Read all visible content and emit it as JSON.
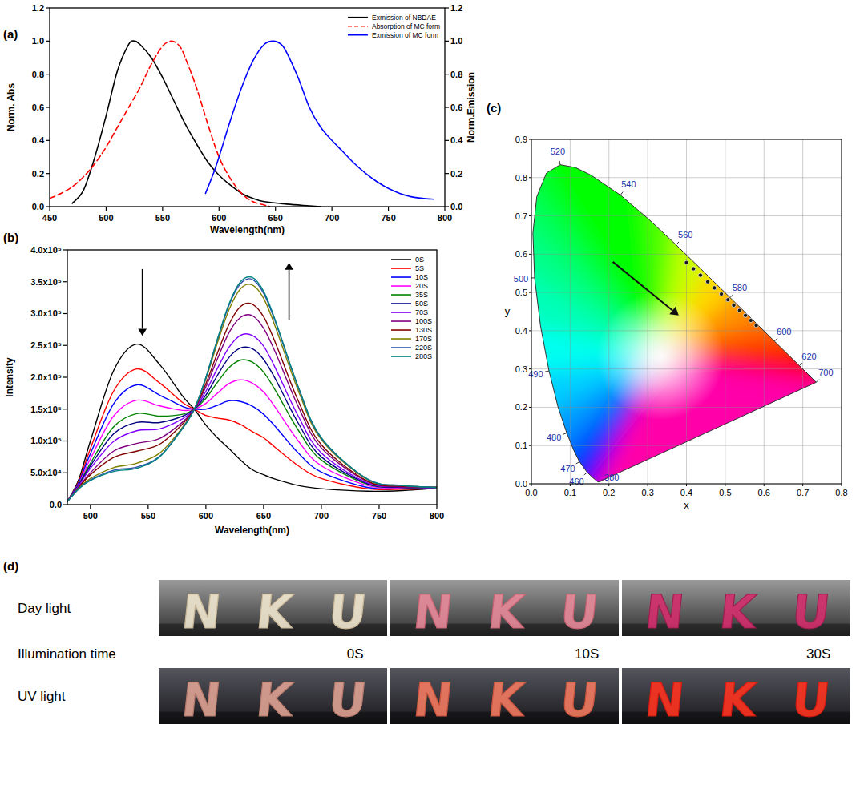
{
  "chart_data": [
    {
      "panel": "(a)",
      "type": "line",
      "x_label": "Wavelength(nm)",
      "y_label": "Norm. Abs",
      "y2_label": "Norm.Emission",
      "xlim": [
        450,
        800
      ],
      "xticks": [
        450,
        500,
        550,
        600,
        650,
        700,
        750,
        800
      ],
      "ylim": [
        0,
        1.2
      ],
      "yticks": [
        {
          "value": 0,
          "label": "0.0"
        },
        0.2,
        0.4,
        0.6,
        0.8,
        {
          "value": 1,
          "label": "1.0"
        },
        1.2
      ],
      "y2lim": [
        0,
        1.2
      ],
      "y2ticks": [
        {
          "value": 0,
          "label": "0.0"
        },
        0.2,
        0.4,
        0.6,
        0.8,
        {
          "value": 1,
          "label": "1.0"
        },
        1.2
      ],
      "grid": false,
      "legend": "upper right",
      "series": [
        {
          "name": "Exmission of NBDAE",
          "color": "#000000",
          "line_style": "solid",
          "axis": "y2",
          "x": [
            470,
            480,
            490,
            500,
            510,
            520,
            525,
            530,
            540,
            550,
            560,
            570,
            580,
            590,
            600,
            610,
            620,
            630,
            640,
            660,
            680,
            690
          ],
          "values": [
            0.02,
            0.1,
            0.3,
            0.55,
            0.82,
            0.98,
            1.0,
            0.98,
            0.9,
            0.78,
            0.64,
            0.5,
            0.38,
            0.27,
            0.19,
            0.13,
            0.08,
            0.05,
            0.03,
            0.015,
            0.005,
            0.0
          ]
        },
        {
          "name": "Absorption of MC form",
          "color": "#ff0000",
          "line_style": "dashed",
          "x": [
            450,
            460,
            470,
            480,
            490,
            500,
            510,
            520,
            530,
            540,
            550,
            558,
            565,
            570,
            580,
            590,
            600,
            610,
            620,
            630,
            640,
            645
          ],
          "values": [
            0.05,
            0.08,
            0.12,
            0.18,
            0.26,
            0.36,
            0.48,
            0.6,
            0.72,
            0.86,
            0.97,
            1.0,
            0.97,
            0.9,
            0.72,
            0.5,
            0.3,
            0.17,
            0.08,
            0.03,
            0.01,
            0.0
          ]
        },
        {
          "name": "Exmission of MC form",
          "color": "#0000ff",
          "line_style": "solid",
          "axis": "y2",
          "x": [
            588,
            595,
            600,
            610,
            620,
            630,
            640,
            648,
            655,
            660,
            670,
            680,
            690,
            700,
            710,
            720,
            730,
            740,
            750,
            760,
            770,
            780,
            790
          ],
          "values": [
            0.08,
            0.2,
            0.3,
            0.52,
            0.72,
            0.88,
            0.98,
            1.0,
            0.98,
            0.93,
            0.78,
            0.6,
            0.48,
            0.4,
            0.33,
            0.26,
            0.2,
            0.15,
            0.11,
            0.08,
            0.06,
            0.05,
            0.045
          ]
        }
      ]
    },
    {
      "panel": "(b)",
      "type": "line",
      "x_label": "Wavelength(nm)",
      "y_label": "Intensity",
      "xlim": [
        480,
        800
      ],
      "xticks": [
        500,
        550,
        600,
        650,
        700,
        750,
        800
      ],
      "ylim": [
        0,
        400000
      ],
      "yticks": [
        {
          "value": 0,
          "label": "0.0"
        },
        {
          "value": 50000,
          "label": "5.0x10⁴"
        },
        {
          "value": 100000,
          "label": "1.0x10⁵"
        },
        {
          "value": 150000,
          "label": "1.5x10⁵"
        },
        {
          "value": 200000,
          "label": "2.0x10⁵"
        },
        {
          "value": 250000,
          "label": "2.5x10⁵"
        },
        {
          "value": 300000,
          "label": "3.0x10⁵"
        },
        {
          "value": 350000,
          "label": "3.5x10⁵"
        },
        {
          "value": 400000,
          "label": "4.0x10⁵"
        }
      ],
      "grid": false,
      "legend": "upper right",
      "x": [
        480,
        490,
        500,
        520,
        540,
        560,
        580,
        590,
        600,
        610,
        620,
        630,
        640,
        650,
        660,
        680,
        700,
        740,
        770,
        800
      ],
      "series": [
        {
          "name": "0S",
          "color": "#000000",
          "values": [
            5000,
            40000,
            100000,
            210000,
            252000,
            220000,
            170000,
            150000,
            125000,
            105000,
            88000,
            70000,
            55000,
            47000,
            40000,
            30000,
            25000,
            21000,
            22000,
            26000
          ]
        },
        {
          "name": "5S",
          "color": "#ff0000",
          "values": [
            5000,
            37000,
            88000,
            178000,
            213000,
            191000,
            160000,
            150000,
            140000,
            136000,
            133000,
            126000,
            115000,
            105000,
            90000,
            61000,
            41000,
            25000,
            24000,
            26000
          ]
        },
        {
          "name": "10S",
          "color": "#0000ff",
          "values": [
            5000,
            35000,
            80000,
            158000,
            188000,
            172000,
            154000,
            150000,
            150000,
            156000,
            163000,
            162000,
            155000,
            142000,
            123000,
            81000,
            51000,
            27000,
            25000,
            26000
          ]
        },
        {
          "name": "20S",
          "color": "#ff00ff",
          "values": [
            5000,
            33000,
            72000,
            139000,
            164000,
            155000,
            148000,
            150000,
            159000,
            175000,
            190000,
            196000,
            191000,
            177000,
            153000,
            100000,
            61000,
            30000,
            26000,
            27000
          ]
        },
        {
          "name": "35S",
          "color": "#008000",
          "values": [
            5000,
            32000,
            65000,
            122000,
            143000,
            139000,
            142000,
            150000,
            167000,
            192000,
            215000,
            227000,
            224000,
            208000,
            180000,
            117000,
            70000,
            32000,
            27000,
            27000
          ]
        },
        {
          "name": "50S",
          "color": "#000080",
          "values": [
            5000,
            31000,
            61000,
            111000,
            129000,
            129000,
            139000,
            150000,
            172000,
            203000,
            231000,
            246000,
            245000,
            228000,
            198000,
            128000,
            75000,
            33000,
            27000,
            27000
          ]
        },
        {
          "name": "70S",
          "color": "#8000ff",
          "values": [
            5000,
            30000,
            57000,
            99000,
            116000,
            119000,
            135000,
            150000,
            178000,
            214000,
            247000,
            266000,
            266000,
            249000,
            215000,
            139000,
            81000,
            34000,
            28000,
            27000
          ]
        },
        {
          "name": "100S",
          "color": "#800080",
          "values": [
            5000,
            28000,
            50000,
            84000,
            96000,
            104000,
            130000,
            150000,
            185000,
            229000,
            270000,
            294000,
            297000,
            277000,
            240000,
            154000,
            89000,
            36000,
            28000,
            27000
          ]
        },
        {
          "name": "130S",
          "color": "#800000",
          "values": [
            5000,
            27000,
            47000,
            74000,
            84000,
            95000,
            127000,
            150000,
            190000,
            238000,
            283000,
            311000,
            315000,
            295000,
            255000,
            163000,
            94000,
            37000,
            29000,
            27000
          ]
        },
        {
          "name": "170S",
          "color": "#808000",
          "values": [
            5000,
            26000,
            41000,
            58000,
            65000,
            81000,
            122000,
            150000,
            197000,
            254000,
            306000,
            339000,
            345000,
            324000,
            280000,
            179000,
            102000,
            39000,
            30000,
            27000
          ]
        },
        {
          "name": "220S",
          "color": "#2a4fa8",
          "values": [
            5000,
            25000,
            39000,
            54000,
            59000,
            76000,
            121000,
            150000,
            199000,
            259000,
            313000,
            347000,
            354000,
            332000,
            288000,
            184000,
            104000,
            40000,
            30000,
            27000
          ]
        },
        {
          "name": "280S",
          "color": "#008080",
          "values": [
            5000,
            25000,
            38000,
            52000,
            57000,
            75000,
            120000,
            150000,
            200000,
            260000,
            315000,
            350000,
            357000,
            335000,
            290000,
            185000,
            105000,
            40000,
            30000,
            27000
          ]
        }
      ],
      "arrows": [
        {
          "x": [
            545,
            545
          ],
          "y": [
            370000,
            265000
          ]
        },
        {
          "x": [
            672,
            672
          ],
          "y": [
            290000,
            380000
          ]
        }
      ]
    },
    {
      "panel": "(c)",
      "type": "scatter",
      "x_label": "x",
      "y_label": "y",
      "xlim": [
        0,
        0.8
      ],
      "xticks": [
        {
          "value": 0,
          "label": "0.0"
        },
        0.1,
        0.2,
        0.3,
        0.4,
        0.5,
        0.6,
        0.7,
        0.8
      ],
      "ylim": [
        0,
        0.9
      ],
      "yticks": [
        {
          "value": 0,
          "label": "0.0"
        },
        0.1,
        0.2,
        0.3,
        0.4,
        0.5,
        0.6,
        0.7,
        0.8,
        0.9
      ],
      "grid": true,
      "series": [
        {
          "color": "#1a1a1a",
          "marker": "circle",
          "x": [
            0.4,
            0.418,
            0.436,
            0.455,
            0.472,
            0.49,
            0.507,
            0.522,
            0.537,
            0.552,
            0.566,
            0.58
          ],
          "values": [
            0.578,
            0.562,
            0.545,
            0.528,
            0.512,
            0.496,
            0.481,
            0.467,
            0.453,
            0.44,
            0.427,
            0.414
          ]
        }
      ],
      "spectral_locus": {
        "wavelength": [
          380,
          420,
          440,
          450,
          460,
          470,
          475,
          480,
          485,
          490,
          495,
          500,
          505,
          510,
          515,
          520,
          525,
          530,
          540,
          550,
          560,
          570,
          580,
          590,
          600,
          610,
          620,
          640,
          660,
          700
        ],
        "x": [
          0.1741,
          0.1714,
          0.1644,
          0.1566,
          0.144,
          0.1241,
          0.1096,
          0.0913,
          0.0687,
          0.0454,
          0.0235,
          0.0082,
          0.0039,
          0.0139,
          0.0389,
          0.0743,
          0.1142,
          0.1547,
          0.2296,
          0.3016,
          0.3731,
          0.4441,
          0.5125,
          0.5752,
          0.627,
          0.6658,
          0.6915,
          0.719,
          0.73,
          0.7347
        ],
        "y": [
          0.005,
          0.0051,
          0.0109,
          0.0177,
          0.0297,
          0.0578,
          0.0868,
          0.1327,
          0.2007,
          0.295,
          0.4127,
          0.5384,
          0.6548,
          0.7502,
          0.812,
          0.8338,
          0.8262,
          0.8059,
          0.7543,
          0.6923,
          0.6245,
          0.5547,
          0.4866,
          0.4242,
          0.3725,
          0.334,
          0.3083,
          0.2809,
          0.27,
          0.2653
        ]
      },
      "wavelength_labels": [
        380,
        460,
        470,
        480,
        490,
        500,
        520,
        540,
        560,
        580,
        600,
        620,
        700
      ],
      "arrows": [
        {
          "x": [
            0.21,
            0.38
          ],
          "y": [
            0.58,
            0.44
          ]
        }
      ]
    }
  ],
  "photo_panel": {
    "panel": "(d)",
    "rows": [
      "Day light",
      "UV light"
    ],
    "time_label": "Illumination time",
    "times": [
      "0S",
      "10S",
      "30S"
    ],
    "letters": [
      "N",
      "K",
      "U"
    ]
  }
}
